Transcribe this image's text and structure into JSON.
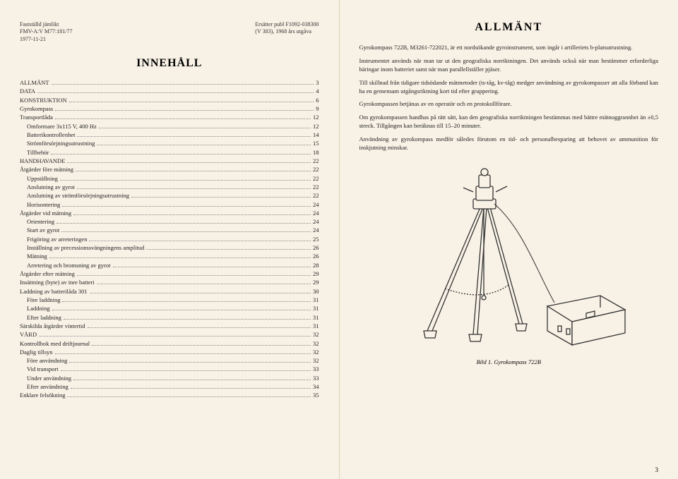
{
  "header": {
    "left_line1": "Fastställd jämlikt",
    "left_line2": "FMV-A:V M77:181/77",
    "left_line3": "1977-11-21",
    "right_line1": "Ersätter publ F1092-038300",
    "right_line2": "(V 383), 1968 års utgåva"
  },
  "toc_title": "INNEHÅLL",
  "toc": [
    {
      "label": "ALLMÄNT",
      "page": "3",
      "indent": 0
    },
    {
      "label": "DATA",
      "page": "4",
      "indent": 0
    },
    {
      "label": "KONSTRUKTION",
      "page": "6",
      "indent": 0
    },
    {
      "label": "Gyrokompass",
      "page": "9",
      "indent": 0
    },
    {
      "label": "Transportlåda",
      "page": "12",
      "indent": 0
    },
    {
      "label": "Omformare 3x115 V, 400 Hz",
      "page": "12",
      "indent": 1
    },
    {
      "label": "Batterikontrollenhet",
      "page": "14",
      "indent": 1
    },
    {
      "label": "Strömförsörjningsutrustning",
      "page": "15",
      "indent": 1
    },
    {
      "label": "Tillbehör",
      "page": "18",
      "indent": 1
    },
    {
      "label": "HANDHAVANDE",
      "page": "22",
      "indent": 0
    },
    {
      "label": "Åtgärder före mätning",
      "page": "22",
      "indent": 0
    },
    {
      "label": "Uppställning",
      "page": "22",
      "indent": 1
    },
    {
      "label": "Anslutning av gyrot",
      "page": "22",
      "indent": 1
    },
    {
      "label": "Anslutning av strömförsörjningsutrustning",
      "page": "22",
      "indent": 1
    },
    {
      "label": "Horisontering",
      "page": "24",
      "indent": 1
    },
    {
      "label": "Åtgärder vid mätning",
      "page": "24",
      "indent": 0
    },
    {
      "label": "Orientering",
      "page": "24",
      "indent": 1
    },
    {
      "label": "Start av gyrot",
      "page": "24",
      "indent": 1
    },
    {
      "label": "Frigöring av arreteringen",
      "page": "25",
      "indent": 1
    },
    {
      "label": "Inställning av precessionssvängningens amplitud",
      "page": "26",
      "indent": 1
    },
    {
      "label": "Mätning",
      "page": "26",
      "indent": 1
    },
    {
      "label": "Arretering och bromsning av gyrot",
      "page": "28",
      "indent": 1
    },
    {
      "label": "Åtgärder efter mätning",
      "page": "29",
      "indent": 0
    },
    {
      "label": "Insättning (byte) av inre batteri",
      "page": "29",
      "indent": 0
    },
    {
      "label": "Laddning av batterilåda 301",
      "page": "30",
      "indent": 0
    },
    {
      "label": "Före laddning",
      "page": "31",
      "indent": 1
    },
    {
      "label": "Laddning",
      "page": "31",
      "indent": 1
    },
    {
      "label": "Efter laddning",
      "page": "31",
      "indent": 1
    },
    {
      "label": "Särskilda åtgärder vintertid",
      "page": "31",
      "indent": 0
    },
    {
      "label": "VÅRD",
      "page": "32",
      "indent": 0
    },
    {
      "label": "Kontrollbok med driftjournal",
      "page": "32",
      "indent": 0
    },
    {
      "label": "Daglig tillsyn",
      "page": "32",
      "indent": 0
    },
    {
      "label": "Före användning",
      "page": "32",
      "indent": 1
    },
    {
      "label": "Vid transport",
      "page": "33",
      "indent": 1
    },
    {
      "label": "Under användning",
      "page": "33",
      "indent": 1
    },
    {
      "label": "Efter användning",
      "page": "34",
      "indent": 1
    },
    {
      "label": "Enklare felsökning",
      "page": "35",
      "indent": 0
    }
  ],
  "allmant_title": "ALLMÄNT",
  "body": {
    "p1": "Gyrokompass 722B, M3261-722021, är ett nordsökande gyroinstrument, som ingår i artilleriets b-platsutrustning.",
    "p2": "Instrumentet används när man tar ut den geografiska norriktningen. Det används också när man bestämmer erforderliga bäringar inom batteriet samt när man parallellställer pjäser.",
    "p3": "Till skillnad från tidigare tidsödande mätmetoder (ts-tåg, kv-tåg) medger användning av gyrokompasser att alla förband kan ha en gemensam utgångsriktning kort tid efter gruppering.",
    "p4": "Gyrokompassen betjänas av en operatör och en protokollförare.",
    "p5": "Om gyrokompassen handhas på rätt sätt, kan den geografiska norriktningen bestämmas med bättre mätnoggrannhet än ±0,5 streck. Tillgången kan beräknas till 15–20 minuter.",
    "p6": "Användning av gyrokompass medför således förutom en tid- och personalbesparing att behovet av ammunition för inskjutning minskar."
  },
  "caption": "Bild 1. Gyrokompass 722B",
  "page_number": "3",
  "colors": {
    "bg": "#f8f2e6",
    "text": "#222222",
    "line": "#333333"
  }
}
